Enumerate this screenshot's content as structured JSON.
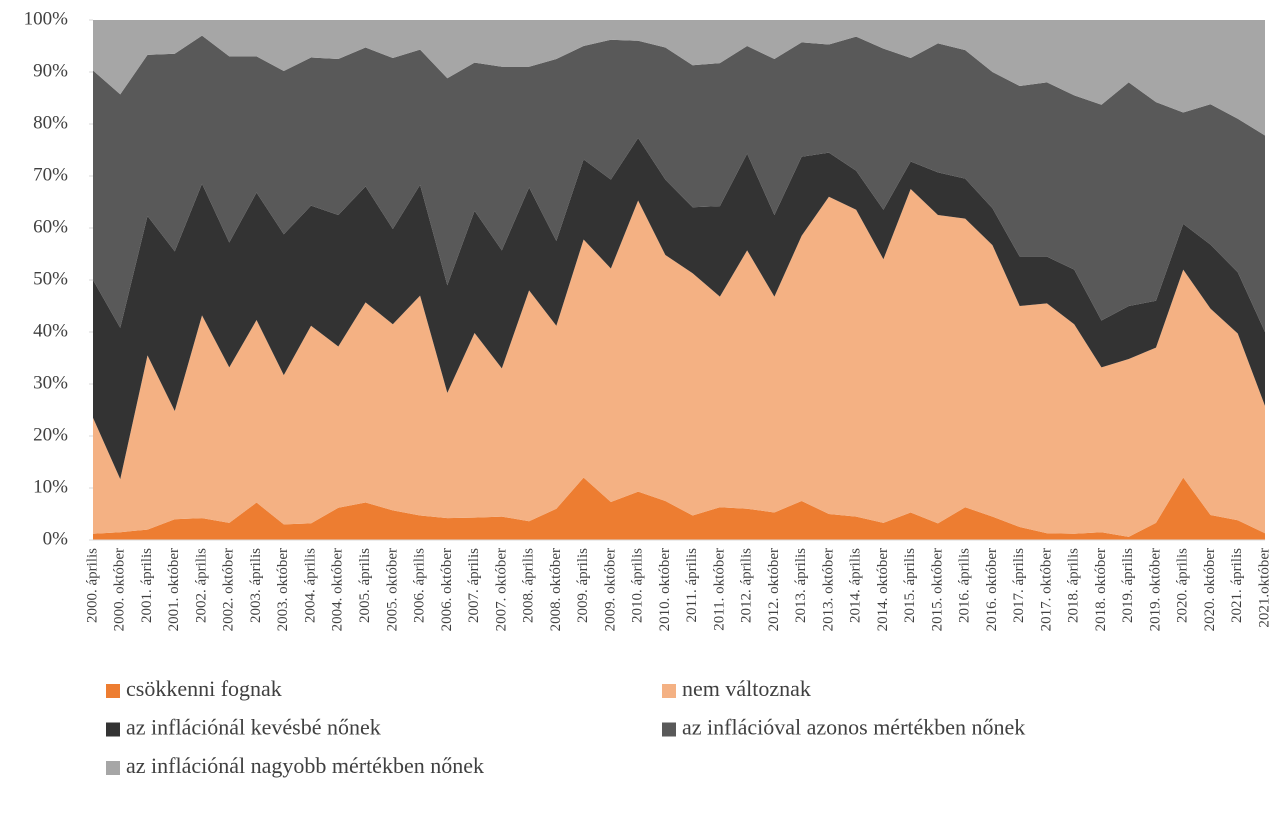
{
  "chart_data": {
    "type": "stacked_area",
    "categories": [
      "2000. április",
      "2000. október",
      "2001. április",
      "2001. október",
      "2002. április",
      "2002. október",
      "2003. április",
      "2003. október",
      "2004. április",
      "2004. október",
      "2005. április",
      "2005. október",
      "2006. április",
      "2006. október",
      "2007. április",
      "2007. október",
      "2008. április",
      "2008. október",
      "2009. április",
      "2009. október",
      "2010. április",
      "2010. október",
      "2011. április",
      "2011. október",
      "2012. április",
      "2012. október",
      "2013. április",
      "2013. október",
      "2014. április",
      "2014. október",
      "2015. április",
      "2015. október",
      "2016. április",
      "2016. október",
      "2017. április",
      "2017. október",
      "2018. április",
      "2018. október",
      "2019. április",
      "2019. október",
      "2020. április",
      "2020. október",
      "2021. április",
      "2021.október"
    ],
    "series": [
      {
        "name": "csökkenni fognak",
        "color": "#ed7d31",
        "values": [
          1.2,
          1.5,
          2,
          4,
          4.2,
          3.3,
          7.2,
          3,
          3.2,
          6.2,
          7.2,
          5.7,
          4.7,
          4.2,
          4.3,
          4.5,
          3.6,
          6,
          12,
          7.3,
          9.3,
          7.5,
          4.7,
          6.3,
          6,
          5.3,
          7.5,
          5,
          4.5,
          3.3,
          5.3,
          3.2,
          6.3,
          4.5,
          2.5,
          1.3,
          1.2,
          1.5,
          0.6,
          3.3,
          12,
          4.8,
          3.8,
          1.3
        ]
      },
      {
        "name": "nem változnak",
        "color": "#f4b183",
        "values": [
          22.3,
          10.2,
          33.5,
          20.8,
          39.0,
          29.9,
          35.1,
          28.7,
          38.0,
          31.0,
          38.5,
          35.8,
          42.3,
          24.1,
          35.5,
          28.5,
          44.4,
          35.2,
          45.8,
          44.9,
          56.0,
          47.3,
          46.6,
          40.5,
          49.7,
          41.5,
          51.0,
          61.0,
          59.0,
          50.7,
          62.2,
          59.3,
          55.5,
          52.2,
          42.5,
          44.2,
          40.3,
          31.7,
          34.2,
          33.7,
          40.0,
          39.7,
          35.9,
          24.5
        ]
      },
      {
        "name": "az inflációnál kevésbé nőnek",
        "color": "#333333",
        "values": [
          26.5,
          29.1,
          26.8,
          30.7,
          25.3,
          24.0,
          24.5,
          27.1,
          23.1,
          25.3,
          22.3,
          18.3,
          21.3,
          20.7,
          23.5,
          22.7,
          19.8,
          16.3,
          15.4,
          17.1,
          12.0,
          14.5,
          12.7,
          17.4,
          18.6,
          15.7,
          15.2,
          8.5,
          7.5,
          9.5,
          5.3,
          8.2,
          7.7,
          7.1,
          9.5,
          9.0,
          10.5,
          9.0,
          10.2,
          9.0,
          8.8,
          12.3,
          11.8,
          14.2
        ]
      },
      {
        "name": "az inflációval azonos mértékben nőnek",
        "color": "#595959",
        "values": [
          40.3,
          44.9,
          31.0,
          38.0,
          28.5,
          35.8,
          26.2,
          31.4,
          28.5,
          30.0,
          26.7,
          32.9,
          26.0,
          39.8,
          28.5,
          35.3,
          23.2,
          35.0,
          21.8,
          26.9,
          18.7,
          25.4,
          27.3,
          27.5,
          20.7,
          30.0,
          22.0,
          20.8,
          25.8,
          31.0,
          19.9,
          24.8,
          24.7,
          26.2,
          32.8,
          33.5,
          33.5,
          41.5,
          43.0,
          38.2,
          21.4,
          27.0,
          29.5,
          37.8
        ]
      },
      {
        "name": "az inflációnál nagyobb mértékben nőnek",
        "color": "#a6a6a6",
        "values": [
          9.7,
          14.3,
          6.7,
          6.5,
          3.0,
          7.0,
          7.0,
          9.8,
          7.2,
          7.5,
          5.3,
          7.3,
          5.7,
          11.2,
          8.2,
          9.0,
          9.0,
          7.5,
          5.0,
          3.8,
          4.0,
          5.3,
          8.7,
          8.3,
          5.0,
          7.5,
          4.3,
          4.7,
          3.2,
          5.5,
          7.3,
          4.5,
          5.8,
          10.0,
          12.7,
          12.0,
          14.5,
          16.3,
          12.0,
          15.8,
          17.8,
          16.2,
          19.0,
          22.2
        ]
      }
    ],
    "ylim": [
      0,
      100
    ],
    "yticks": [
      {
        "value": 0,
        "label": "0%"
      },
      {
        "value": 10,
        "label": "10%"
      },
      {
        "value": 20,
        "label": "20%"
      },
      {
        "value": 30,
        "label": "30%"
      },
      {
        "value": 40,
        "label": "40%"
      },
      {
        "value": 50,
        "label": "50%"
      },
      {
        "value": 60,
        "label": "60%"
      },
      {
        "value": 70,
        "label": "70%"
      },
      {
        "value": 80,
        "label": "80%"
      },
      {
        "value": 90,
        "label": "90%"
      },
      {
        "value": 100,
        "label": "100%"
      }
    ],
    "legend": "bottom"
  }
}
